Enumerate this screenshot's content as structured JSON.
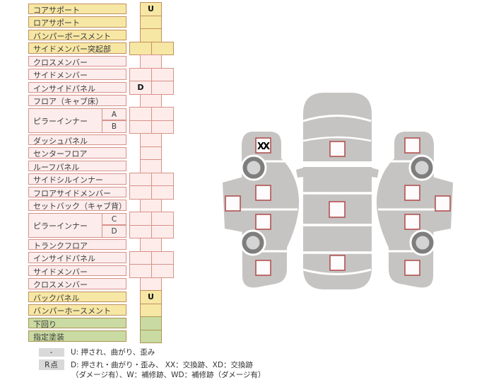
{
  "table": {
    "rows": [
      {
        "label": "コアサポート",
        "tone": "yellow",
        "cells": "single",
        "marks": [
          "U"
        ]
      },
      {
        "label": "ロアサポート",
        "tone": "yellow",
        "cells": "single",
        "marks": [
          ""
        ]
      },
      {
        "label": "バンパーボースメント",
        "tone": "yellow",
        "cells": "single",
        "marks": [
          ""
        ]
      },
      {
        "label": "サイドメンバー突起部",
        "tone": "yellow",
        "cells": "double",
        "marks": [
          "",
          ""
        ]
      },
      {
        "label": "クロスメンバー",
        "tone": "pink",
        "cells": "single",
        "marks": [
          ""
        ]
      },
      {
        "label": "サイドメンバー",
        "tone": "pink",
        "cells": "double",
        "marks": [
          "",
          ""
        ]
      },
      {
        "label": "インサイドパネル",
        "tone": "pink",
        "cells": "double",
        "marks": [
          "D",
          ""
        ]
      },
      {
        "label": "フロア（キャブ床）",
        "tone": "pink",
        "cells": "single",
        "marks": [
          ""
        ]
      },
      {
        "label": "ピラーインナー",
        "sub": "A",
        "tone": "pink",
        "cells": "double",
        "marks": [
          "",
          ""
        ]
      },
      {
        "label": "",
        "sub": "B",
        "tone": "pink",
        "cells": "double",
        "marks": [
          "",
          ""
        ]
      },
      {
        "label": "ダッシュパネル",
        "tone": "pink",
        "cells": "single",
        "marks": [
          ""
        ]
      },
      {
        "label": "センターフロア",
        "tone": "pink",
        "cells": "single",
        "marks": [
          ""
        ]
      },
      {
        "label": "ルーフパネル",
        "tone": "pink",
        "cells": "single",
        "marks": [
          ""
        ]
      },
      {
        "label": "サイドシルインナー",
        "tone": "pink",
        "cells": "double",
        "marks": [
          "",
          ""
        ]
      },
      {
        "label": "フロアサイドメンバー",
        "tone": "pink",
        "cells": "double",
        "marks": [
          "",
          ""
        ]
      },
      {
        "label": "セットバック（キャブ背）",
        "tone": "pink",
        "cells": "single",
        "marks": [
          ""
        ]
      },
      {
        "label": "ピラーインナー",
        "sub": "C",
        "tone": "pink",
        "cells": "double",
        "marks": [
          "",
          ""
        ]
      },
      {
        "label": "",
        "sub": "D",
        "tone": "pink",
        "cells": "double",
        "marks": [
          "",
          ""
        ]
      },
      {
        "label": "トランクフロア",
        "tone": "pink",
        "cells": "single",
        "marks": [
          ""
        ]
      },
      {
        "label": "インサイドパネル",
        "tone": "pink",
        "cells": "double",
        "marks": [
          "",
          ""
        ]
      },
      {
        "label": "サイドメンバー",
        "tone": "pink",
        "cells": "double",
        "marks": [
          "",
          ""
        ]
      },
      {
        "label": "クロスメンバー",
        "tone": "pink",
        "cells": "single",
        "marks": [
          ""
        ]
      },
      {
        "label": "バックパネル",
        "tone": "yellow",
        "cells": "single",
        "marks": [
          "U"
        ]
      },
      {
        "label": "バンパーホースメント",
        "tone": "yellow",
        "cells": "single",
        "marks": [
          ""
        ]
      },
      {
        "label": "下回り",
        "tone": "green",
        "cells": "single",
        "marks": [
          ""
        ]
      },
      {
        "label": "指定塗装",
        "tone": "green",
        "cells": "single",
        "marks": [
          ""
        ]
      }
    ]
  },
  "diagram": {
    "checkpoints": {
      "left_roof_side": {
        "mark": ""
      },
      "left_front_fender": {
        "mark": "XX"
      },
      "left_front_door": {
        "mark": ""
      },
      "left_rear_door": {
        "mark": ""
      },
      "left_rear_fender": {
        "mark": ""
      },
      "hood": {
        "mark": ""
      },
      "roof": {
        "mark": ""
      },
      "trunk": {
        "mark": ""
      },
      "right_front_fender": {
        "mark": ""
      },
      "right_front_door": {
        "mark": ""
      },
      "right_rear_door": {
        "mark": ""
      },
      "right_rear_fender": {
        "mark": ""
      },
      "right_roof_side": {
        "mark": ""
      }
    }
  },
  "legend": {
    "row1_badge": "-",
    "row1_text": "U: 押され、曲がり、歪み",
    "row2_badge": "R点",
    "row2_text": "D: 押され・曲がり・歪み、 XX：交換跡、XD：交換跡",
    "row3_text": "（ダメージ有）、W：補修跡、WD：補修跡（ダメージ有）"
  },
  "colors": {
    "row_yellow": "#f7e7a4",
    "row_pink": "#fdecea",
    "row_green": "#c9dba2",
    "border_tan": "#c0905f",
    "border_salmon": "#d89289",
    "checkpoint_border": "#b25252",
    "car_body_gray": "#c5c4c2",
    "legend_badge_gray": "#d9d9d9"
  }
}
